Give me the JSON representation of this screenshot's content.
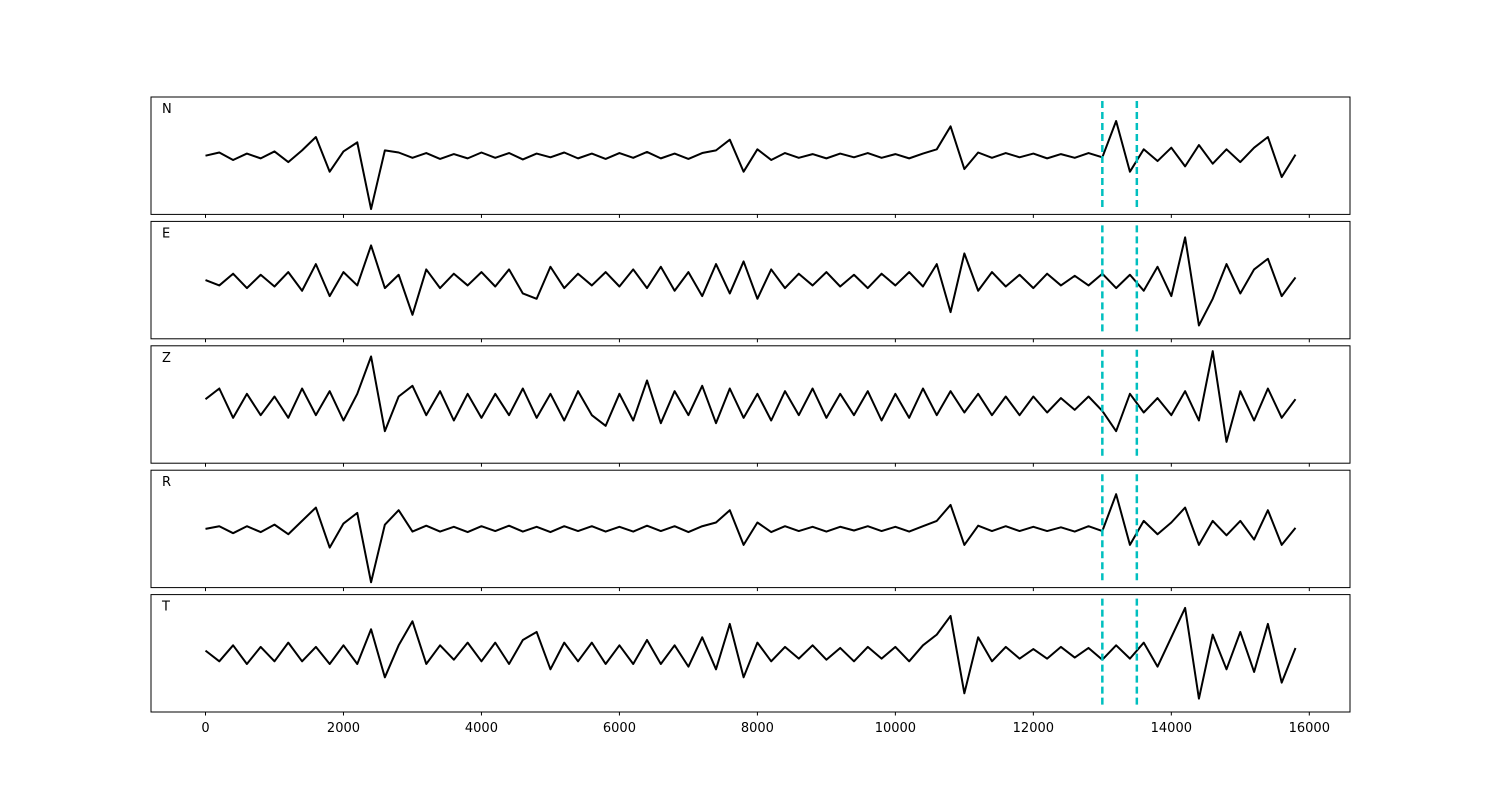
{
  "chart_data": {
    "type": "line",
    "x": [
      0,
      200,
      400,
      600,
      800,
      1000,
      1200,
      1400,
      1600,
      1800,
      2000,
      2200,
      2400,
      2600,
      2800,
      3000,
      3200,
      3400,
      3600,
      3800,
      4000,
      4200,
      4400,
      4600,
      4800,
      5000,
      5200,
      5400,
      5600,
      5800,
      6000,
      6200,
      6400,
      6600,
      6800,
      7000,
      7200,
      7400,
      7600,
      7800,
      8000,
      8200,
      8400,
      8600,
      8800,
      9000,
      9200,
      9400,
      9600,
      9800,
      10000,
      10200,
      10400,
      10600,
      10800,
      11000,
      11200,
      11400,
      11600,
      11800,
      12000,
      12200,
      12400,
      12600,
      12800,
      13000,
      13200,
      13400,
      13600,
      13800,
      14000,
      14200,
      14400,
      14600,
      14800,
      15000,
      15200,
      15400,
      15600,
      15800
    ],
    "series": [
      {
        "name": "N",
        "color": "#000000",
        "values": [
          0,
          0.06,
          -0.08,
          0.04,
          -0.05,
          0.08,
          -0.12,
          0.1,
          0.35,
          -0.3,
          0.08,
          0.25,
          -1.0,
          0.1,
          0.06,
          -0.04,
          0.05,
          -0.06,
          0.03,
          -0.05,
          0.06,
          -0.04,
          0.05,
          -0.07,
          0.04,
          -0.03,
          0.06,
          -0.05,
          0.04,
          -0.06,
          0.05,
          -0.04,
          0.07,
          -0.05,
          0.04,
          -0.06,
          0.05,
          0.1,
          0.3,
          -0.3,
          0.12,
          -0.08,
          0.05,
          -0.04,
          0.03,
          -0.05,
          0.04,
          -0.03,
          0.05,
          -0.04,
          0.03,
          -0.05,
          0.04,
          0.12,
          0.55,
          -0.25,
          0.06,
          -0.04,
          0.05,
          -0.03,
          0.04,
          -0.05,
          0.03,
          -0.04,
          0.05,
          -0.03,
          0.65,
          -0.3,
          0.12,
          -0.1,
          0.15,
          -0.2,
          0.2,
          -0.15,
          0.12,
          -0.12,
          0.15,
          0.35,
          -0.4,
          0.02
        ]
      },
      {
        "name": "E",
        "color": "#000000",
        "values": [
          0,
          -0.1,
          0.12,
          -0.15,
          0.1,
          -0.12,
          0.15,
          -0.2,
          0.3,
          -0.3,
          0.15,
          -0.1,
          0.65,
          -0.15,
          0.1,
          -0.65,
          0.2,
          -0.15,
          0.12,
          -0.1,
          0.15,
          -0.12,
          0.2,
          -0.25,
          -0.35,
          0.25,
          -0.15,
          0.12,
          -0.1,
          0.15,
          -0.12,
          0.2,
          -0.15,
          0.25,
          -0.2,
          0.15,
          -0.3,
          0.3,
          -0.25,
          0.35,
          -0.35,
          0.2,
          -0.15,
          0.12,
          -0.1,
          0.15,
          -0.12,
          0.1,
          -0.15,
          0.12,
          -0.1,
          0.15,
          -0.12,
          0.3,
          -0.6,
          0.5,
          -0.2,
          0.15,
          -0.12,
          0.1,
          -0.15,
          0.12,
          -0.1,
          0.08,
          -0.1,
          0.12,
          -0.15,
          0.1,
          -0.2,
          0.25,
          -0.3,
          0.8,
          -0.85,
          -0.35,
          0.3,
          -0.25,
          0.2,
          0.4,
          -0.3,
          0.05
        ]
      },
      {
        "name": "Z",
        "color": "#000000",
        "values": [
          0.1,
          0.3,
          -0.25,
          0.2,
          -0.2,
          0.15,
          -0.25,
          0.3,
          -0.2,
          0.25,
          -0.3,
          0.2,
          0.9,
          -0.5,
          0.15,
          0.35,
          -0.2,
          0.25,
          -0.3,
          0.2,
          -0.25,
          0.2,
          -0.2,
          0.3,
          -0.25,
          0.2,
          -0.3,
          0.25,
          -0.2,
          -0.4,
          0.2,
          -0.3,
          0.45,
          -0.35,
          0.25,
          -0.2,
          0.35,
          -0.35,
          0.3,
          -0.25,
          0.2,
          -0.3,
          0.25,
          -0.2,
          0.3,
          -0.25,
          0.2,
          -0.2,
          0.25,
          -0.3,
          0.2,
          -0.25,
          0.3,
          -0.2,
          0.25,
          -0.15,
          0.2,
          -0.2,
          0.15,
          -0.2,
          0.15,
          -0.15,
          0.12,
          -0.1,
          0.15,
          -0.12,
          -0.5,
          0.2,
          -0.15,
          0.12,
          -0.2,
          0.25,
          -0.3,
          1.0,
          -0.7,
          0.25,
          -0.3,
          0.3,
          -0.25,
          0.1
        ]
      },
      {
        "name": "R",
        "color": "#000000",
        "values": [
          0,
          0.05,
          -0.08,
          0.05,
          -0.06,
          0.08,
          -0.1,
          0.15,
          0.4,
          -0.35,
          0.1,
          0.3,
          -1.0,
          0.08,
          0.35,
          -0.05,
          0.06,
          -0.05,
          0.04,
          -0.06,
          0.05,
          -0.04,
          0.06,
          -0.05,
          0.04,
          -0.06,
          0.05,
          -0.04,
          0.05,
          -0.05,
          0.04,
          -0.05,
          0.06,
          -0.04,
          0.05,
          -0.06,
          0.05,
          0.12,
          0.35,
          -0.3,
          0.12,
          -0.06,
          0.05,
          -0.04,
          0.04,
          -0.05,
          0.04,
          -0.03,
          0.05,
          -0.04,
          0.04,
          -0.05,
          0.05,
          0.15,
          0.45,
          -0.3,
          0.06,
          -0.04,
          0.05,
          -0.04,
          0.04,
          -0.04,
          0.03,
          -0.05,
          0.05,
          -0.04,
          0.65,
          -0.3,
          0.15,
          -0.1,
          0.12,
          0.4,
          -0.3,
          0.15,
          -0.12,
          0.15,
          -0.2,
          0.35,
          -0.3,
          0.02
        ]
      },
      {
        "name": "T",
        "color": "#000000",
        "values": [
          0.05,
          -0.15,
          0.15,
          -0.2,
          0.12,
          -0.15,
          0.2,
          -0.15,
          0.12,
          -0.2,
          0.15,
          -0.2,
          0.45,
          -0.45,
          0.15,
          0.6,
          -0.2,
          0.15,
          -0.12,
          0.2,
          -0.15,
          0.2,
          -0.2,
          0.25,
          0.4,
          -0.3,
          0.2,
          -0.15,
          0.2,
          -0.2,
          0.15,
          -0.2,
          0.25,
          -0.2,
          0.15,
          -0.25,
          0.3,
          -0.3,
          0.55,
          -0.45,
          0.2,
          -0.15,
          0.12,
          -0.1,
          0.15,
          -0.12,
          0.1,
          -0.15,
          0.12,
          -0.1,
          0.12,
          -0.15,
          0.15,
          0.35,
          0.7,
          -0.75,
          0.3,
          -0.15,
          0.12,
          -0.1,
          0.08,
          -0.1,
          0.12,
          -0.08,
          0.1,
          -0.12,
          0.15,
          -0.1,
          0.2,
          -0.25,
          0.3,
          0.85,
          -0.85,
          0.35,
          -0.3,
          0.4,
          -0.35,
          0.55,
          -0.55,
          0.1
        ]
      }
    ],
    "vlines": {
      "x": [
        13000,
        13500
      ],
      "color": "#00bfbf",
      "style": "dashed"
    },
    "xlim": [
      -790,
      16590
    ],
    "xticks": [
      0,
      2000,
      4000,
      6000,
      8000,
      10000,
      12000,
      14000,
      16000
    ],
    "ylim": [
      -1.1,
      1.1
    ],
    "grid": false
  }
}
